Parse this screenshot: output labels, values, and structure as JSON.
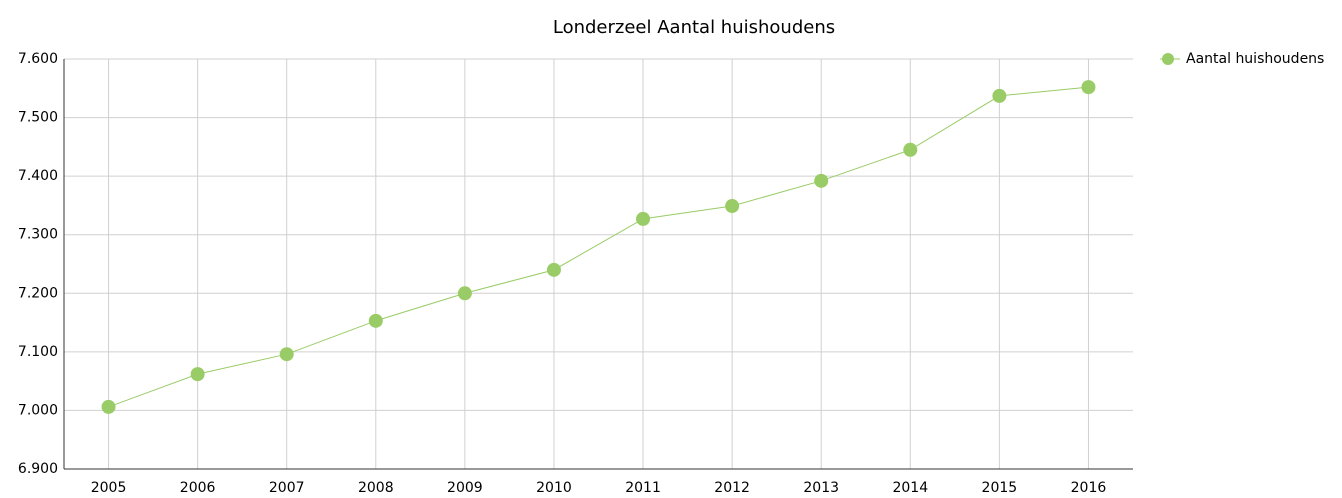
{
  "chart_data": {
    "type": "line",
    "title": "Londerzeel  Aantal huishoudens",
    "categories": [
      "2005",
      "2006",
      "2007",
      "2008",
      "2009",
      "2010",
      "2011",
      "2012",
      "2013",
      "2014",
      "2015",
      "2016"
    ],
    "series": [
      {
        "name": "Aantal huishoudens",
        "color": "#99cc66",
        "values": [
          7006,
          7062,
          7096,
          7153,
          7200,
          7240,
          7327,
          7349,
          7392,
          7445,
          7537,
          7552
        ]
      }
    ],
    "ylim": [
      6900,
      7600
    ],
    "yticks": [
      {
        "value": 6900,
        "label": "6.900"
      },
      {
        "value": 7000,
        "label": "7.000"
      },
      {
        "value": 7100,
        "label": "7.100"
      },
      {
        "value": 7200,
        "label": "7.200"
      },
      {
        "value": 7300,
        "label": "7.300"
      },
      {
        "value": 7400,
        "label": "7.400"
      },
      {
        "value": 7500,
        "label": "7.500"
      },
      {
        "value": 7600,
        "label": "7.600"
      }
    ],
    "grid": true,
    "legend": "top-right"
  }
}
